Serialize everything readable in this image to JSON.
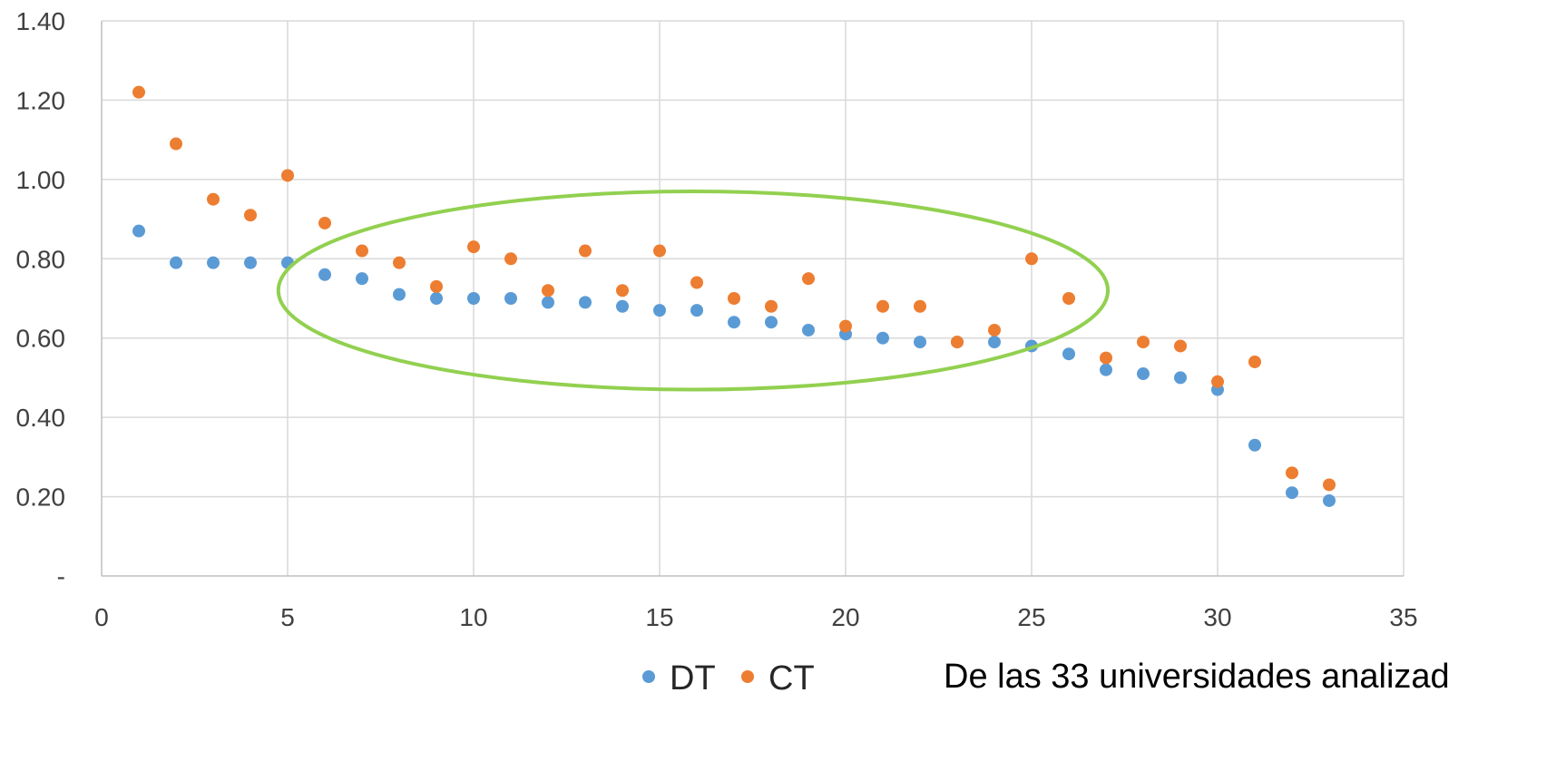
{
  "chart_data": {
    "type": "scatter",
    "title": "",
    "xlabel": "",
    "ylabel": "",
    "xlim": [
      0,
      35
    ],
    "ylim": [
      0,
      1.4
    ],
    "x_ticks": [
      "0",
      "5",
      "10",
      "15",
      "20",
      "25",
      "30",
      "35"
    ],
    "y_ticks": [
      "-",
      "0.20",
      "0.40",
      "0.60",
      "0.80",
      "1.00",
      "1.20",
      "1.40"
    ],
    "grid": true,
    "legend_position": "bottom",
    "series": [
      {
        "name": "DT",
        "color": "#5B9BD5",
        "x": [
          1,
          2,
          3,
          4,
          5,
          6,
          7,
          8,
          9,
          10,
          11,
          12,
          13,
          14,
          15,
          16,
          17,
          18,
          19,
          20,
          21,
          22,
          23,
          24,
          25,
          26,
          27,
          28,
          29,
          30,
          31,
          32,
          33
        ],
        "y": [
          0.87,
          0.79,
          0.79,
          0.79,
          0.79,
          0.76,
          0.75,
          0.71,
          0.7,
          0.7,
          0.7,
          0.69,
          0.69,
          0.68,
          0.67,
          0.67,
          0.64,
          0.64,
          0.62,
          0.61,
          0.6,
          0.59,
          0.59,
          0.59,
          0.58,
          0.56,
          0.52,
          0.51,
          0.5,
          0.47,
          0.33,
          0.21,
          0.19
        ]
      },
      {
        "name": "CT",
        "color": "#ED7D31",
        "x": [
          1,
          2,
          3,
          4,
          5,
          6,
          7,
          8,
          9,
          10,
          11,
          12,
          13,
          14,
          15,
          16,
          17,
          18,
          19,
          20,
          21,
          22,
          23,
          24,
          25,
          26,
          27,
          28,
          29,
          30,
          31,
          32,
          33
        ],
        "y": [
          1.22,
          1.09,
          0.95,
          0.91,
          1.01,
          0.89,
          0.82,
          0.79,
          0.73,
          0.83,
          0.8,
          0.72,
          0.82,
          0.72,
          0.82,
          0.74,
          0.7,
          0.68,
          0.75,
          0.63,
          0.68,
          0.68,
          0.59,
          0.62,
          0.8,
          0.7,
          0.55,
          0.59,
          0.58,
          0.49,
          0.54,
          0.26,
          0.23
        ]
      }
    ],
    "annotation": {
      "shape": "ellipse",
      "color": "#92D050",
      "center_x": 15.9,
      "center_y": 0.72,
      "radius_x": 11.15,
      "radius_y": 0.25
    },
    "caption": "De las 33 universidades analizad"
  }
}
